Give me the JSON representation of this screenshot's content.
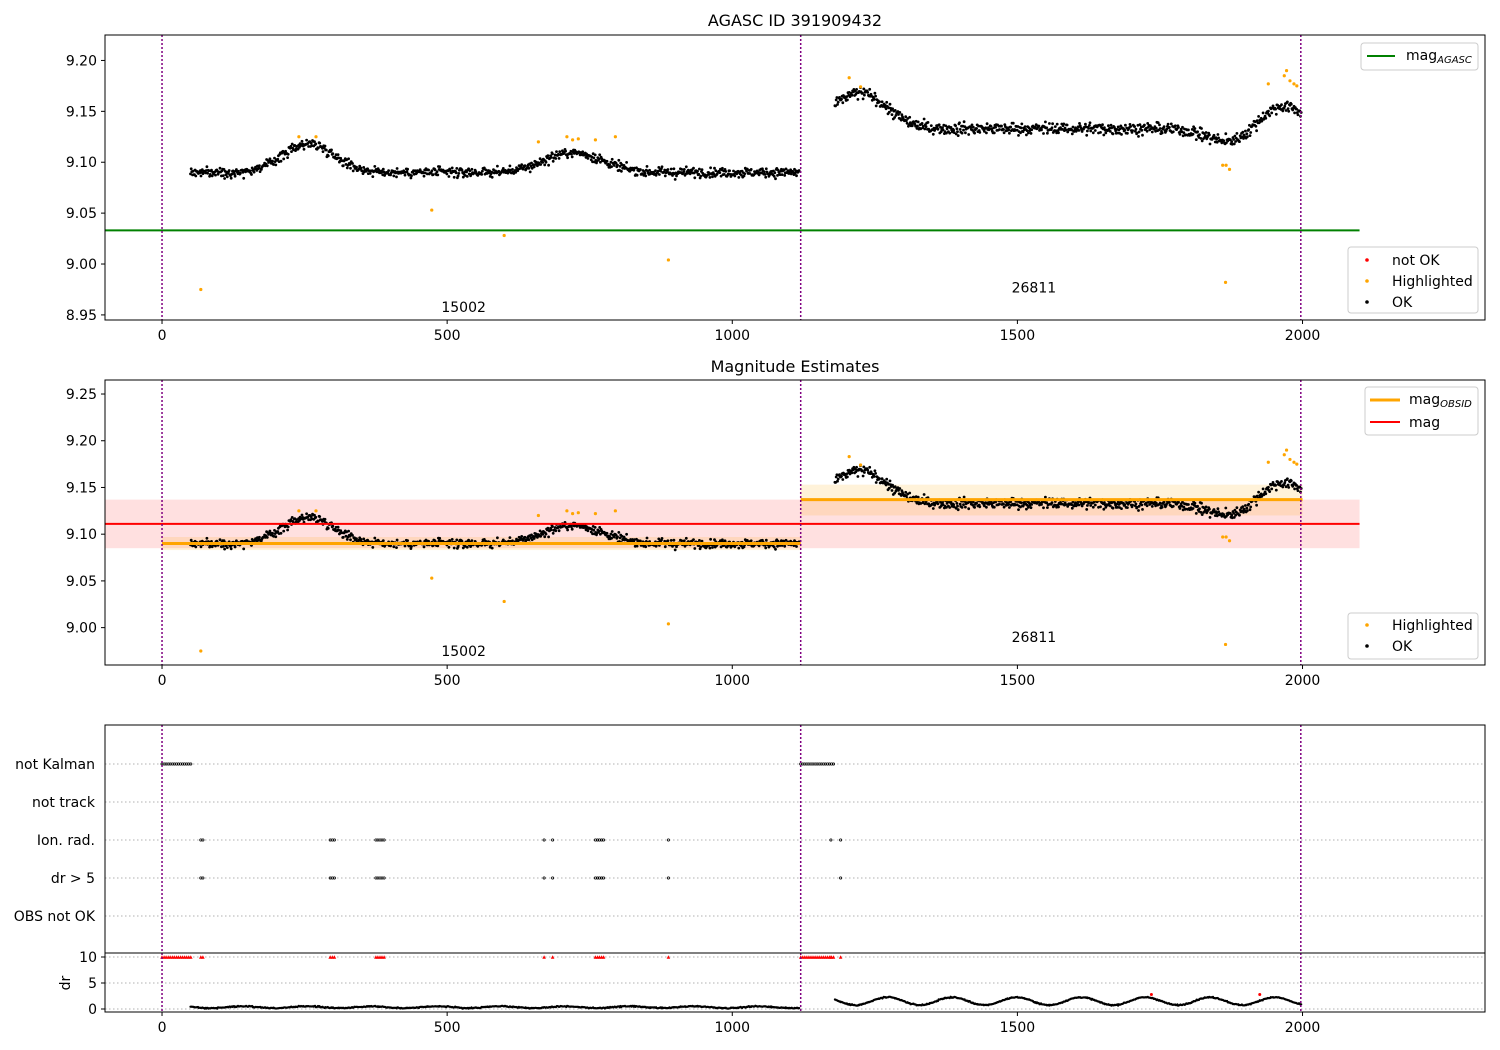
{
  "chart_data": [
    {
      "type": "scatter",
      "title": "AGASC ID 391909432",
      "xlim": [
        -100,
        2320
      ],
      "ylim": [
        8.945,
        9.225
      ],
      "xticks": [
        0,
        500,
        1000,
        1500,
        2000
      ],
      "yticks": [
        8.95,
        9.0,
        9.05,
        9.1,
        9.15,
        9.2
      ],
      "vlines": [
        0,
        1120,
        1997
      ],
      "obsids": [
        {
          "label": "15002",
          "x": 560,
          "y": 8.958
        },
        {
          "label": "26811",
          "x": 1560,
          "y": 8.977
        }
      ],
      "lines": [
        {
          "name": "mag_AGASC",
          "y": 9.033,
          "x": [
            -100,
            2100
          ],
          "color": "#008000"
        }
      ],
      "segments": [
        {
          "x0": 50,
          "x1": 1118,
          "base": 9.09,
          "bumps": [
            [
              240,
              9.103
            ],
            [
              270,
              9.107
            ],
            [
              700,
              9.103
            ],
            [
              750,
              9.1
            ]
          ],
          "sd": 0.009
        },
        {
          "x0": 1180,
          "x1": 1998,
          "base": 9.133,
          "bumps": [
            [
              1200,
              9.15
            ],
            [
              1240,
              9.155
            ],
            [
              1880,
              9.118
            ],
            [
              1960,
              9.157
            ]
          ],
          "sd": 0.011
        }
      ],
      "highlighted": [
        [
          68,
          8.975
        ],
        [
          240,
          9.125
        ],
        [
          270,
          9.125
        ],
        [
          473,
          9.053
        ],
        [
          600,
          9.028
        ],
        [
          660,
          9.12
        ],
        [
          710,
          9.125
        ],
        [
          720,
          9.122
        ],
        [
          730,
          9.123
        ],
        [
          760,
          9.122
        ],
        [
          795,
          9.125
        ],
        [
          888,
          9.004
        ],
        [
          1205,
          9.183
        ],
        [
          1225,
          9.174
        ],
        [
          1860,
          9.097
        ],
        [
          1866,
          9.097
        ],
        [
          1872,
          9.093
        ],
        [
          1865,
          8.982
        ],
        [
          1940,
          9.177
        ],
        [
          1968,
          9.185
        ],
        [
          1972,
          9.19
        ],
        [
          1978,
          9.18
        ],
        [
          1985,
          9.177
        ],
        [
          1990,
          9.175
        ]
      ],
      "legends": {
        "top_right": [
          "mag_AGASC"
        ],
        "bottom_right": [
          "not OK",
          "Highlighted",
          "OK"
        ]
      },
      "colors": {
        "ok": "#000000",
        "highlighted": "#ffa500",
        "not_ok": "#ff0000",
        "agasc": "#008000",
        "vline": "#800080"
      }
    },
    {
      "type": "scatter",
      "title": "Magnitude Estimates",
      "xlim": [
        -100,
        2320
      ],
      "ylim": [
        8.96,
        9.265
      ],
      "xticks": [
        0,
        500,
        1000,
        1500,
        2000
      ],
      "yticks": [
        9.0,
        9.05,
        9.1,
        9.15,
        9.2,
        9.25
      ],
      "vlines": [
        0,
        1120,
        1997
      ],
      "obsids": [
        {
          "label": "15002",
          "x": 560,
          "y": 8.975
        },
        {
          "label": "26811",
          "x": 1560,
          "y": 8.99
        }
      ],
      "mag": {
        "name": "mag",
        "y": 9.111,
        "band": [
          9.085,
          9.137
        ],
        "x": [
          -100,
          2100
        ],
        "color": "#ff0000"
      },
      "mag_obsid": [
        {
          "name": "mag_OBSID",
          "x": [
            0,
            1120
          ],
          "y": 9.09,
          "band": [
            9.083,
            9.097
          ]
        },
        {
          "name": "mag_OBSID",
          "x": [
            1120,
            2000
          ],
          "y": 9.137,
          "band": [
            9.12,
            9.153
          ]
        }
      ],
      "legends": {
        "top_right": [
          "mag_OBSID",
          "mag"
        ],
        "bottom_right": [
          "Highlighted",
          "OK"
        ]
      }
    },
    {
      "type": "scatter",
      "title": "",
      "xlim": [
        -100,
        2320
      ],
      "flag_rows": [
        "not Kalman",
        "not track",
        "Ion. rad.",
        "dr > 5",
        "OBS not OK"
      ],
      "flags": {
        "not Kalman": [
          [
            0,
            52
          ],
          [
            1120,
            1180
          ]
        ],
        "not track": [],
        "Ion. rad.": [
          [
            68,
            72
          ],
          [
            295,
            303
          ],
          [
            375,
            390
          ],
          [
            670,
            672
          ],
          [
            685,
            687
          ],
          [
            760,
            778
          ],
          [
            888,
            890
          ],
          [
            1173,
            1175
          ],
          [
            1190,
            1192
          ]
        ],
        "dr > 5": [
          [
            68,
            72
          ],
          [
            295,
            303
          ],
          [
            375,
            390
          ],
          [
            670,
            672
          ],
          [
            685,
            687
          ],
          [
            760,
            778
          ],
          [
            888,
            890
          ],
          [
            1190,
            1192
          ]
        ],
        "OBS not OK": []
      },
      "dr": {
        "ylabel": "dr",
        "yticks": [
          0,
          5,
          10
        ],
        "ylim": [
          -0.5,
          10.5
        ],
        "segments": [
          {
            "x0": 50,
            "x1": 1118,
            "base": 0.35
          },
          {
            "x0": 1180,
            "x1": 1998,
            "base": 1.5
          }
        ],
        "red_points": [
          [
            1735,
            2.8
          ],
          [
            1925,
            2.8
          ]
        ],
        "triangles_at": 10
      },
      "xticks": [
        0,
        500,
        1000,
        1500,
        2000
      ]
    }
  ]
}
